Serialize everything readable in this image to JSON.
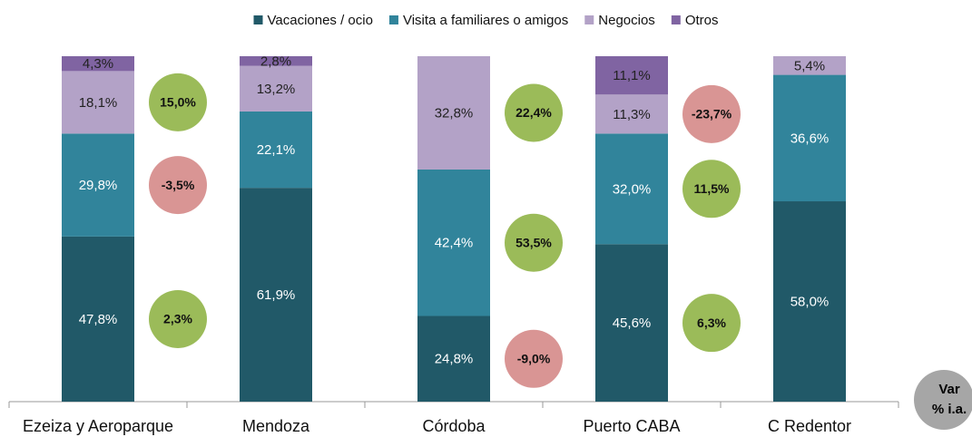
{
  "chart_data": {
    "type": "stacked_bar",
    "categories": [
      "Ezeiza y Aeroparque",
      "Mendoza",
      "Córdoba",
      "Puerto CABA",
      "C Redentor"
    ],
    "ylim": [
      0,
      100
    ],
    "series": [
      {
        "name": "Vacaciones / ocio",
        "color": "#215968",
        "label_color": "#ffffff",
        "values": [
          47.8,
          61.9,
          24.8,
          45.6,
          58.0
        ],
        "value_labels": [
          "47,8%",
          "61,9%",
          "24,8%",
          "45,6%",
          "58,0%"
        ],
        "variations": [
          2.3,
          null,
          -9.0,
          6.3,
          null
        ],
        "variation_labels": [
          "2,3%",
          null,
          "-9,0%",
          "6,3%",
          null
        ]
      },
      {
        "name": "Visita a familiares o amigos",
        "color": "#31849b",
        "label_color": "#ffffff",
        "values": [
          29.8,
          22.1,
          42.4,
          32.0,
          36.6
        ],
        "value_labels": [
          "29,8%",
          "22,1%",
          "42,4%",
          "32,0%",
          "36,6%"
        ],
        "variations": [
          -3.5,
          null,
          53.5,
          11.5,
          null
        ],
        "variation_labels": [
          "-3,5%",
          null,
          "53,5%",
          "11,5%",
          null
        ]
      },
      {
        "name": "Negocios",
        "color": "#b3a2c7",
        "label_color": "#222222",
        "values": [
          18.1,
          13.2,
          32.8,
          11.3,
          5.4
        ],
        "value_labels": [
          "18,1%",
          "13,2%",
          "32,8%",
          "11,3%",
          "5,4%"
        ],
        "variations": [
          15.0,
          null,
          22.4,
          -23.7,
          null
        ],
        "variation_labels": [
          "15,0%",
          null,
          "22,4%",
          "-23,7%",
          null
        ]
      },
      {
        "name": "Otros",
        "color": "#8064a2",
        "label_color": "#222222",
        "values": [
          4.3,
          2.8,
          null,
          11.1,
          null
        ],
        "value_labels": [
          "4,3%",
          "2,8%",
          null,
          "11,1%",
          null
        ]
      }
    ],
    "positive_color": "#9bbb59",
    "negative_color": "#d99594",
    "variation_legend": [
      "Var",
      "% i.a."
    ],
    "variation_legend_color": "#a6a6a6"
  }
}
